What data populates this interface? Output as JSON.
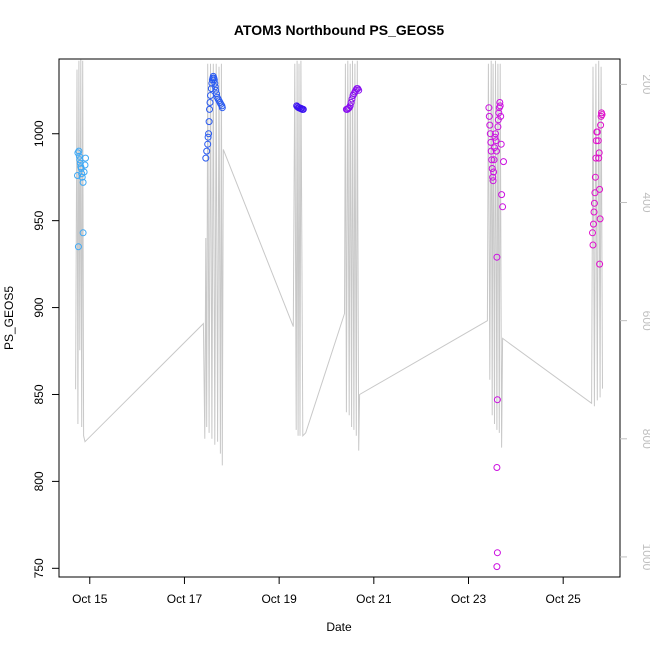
{
  "chart_data": {
    "type": "scatter",
    "title": "ATOM3 Northbound PS_GEOS5",
    "xlabel": "Date",
    "ylabel": "PS_GEOS5",
    "x_unit": "day of October",
    "xlim": [
      14.35,
      26.2
    ],
    "ylim": [
      745,
      1043
    ],
    "x_ticks": [
      15,
      17,
      19,
      21,
      23,
      25
    ],
    "x_tick_labels": [
      "Oct 15",
      "Oct 17",
      "Oct 19",
      "Oct 21",
      "Oct 23",
      "Oct 25"
    ],
    "y_ticks": [
      750,
      800,
      850,
      900,
      950,
      1000
    ],
    "y_tick_labels": [
      "750",
      "800",
      "850",
      "900",
      "950",
      "1000"
    ],
    "right_axis": {
      "label": "",
      "color": "#bfbfbf",
      "ylim": [
        1034,
        157
      ],
      "ticks": [
        200,
        400,
        600,
        800,
        1000
      ],
      "tick_labels": [
        "200",
        "400",
        "600",
        "800",
        "1000"
      ]
    },
    "grid": false,
    "legend": "none",
    "series": [
      {
        "color": "#3fa9f5",
        "points": [
          [
            14.75,
            989
          ],
          [
            14.77,
            990
          ],
          [
            14.78,
            987
          ],
          [
            14.79,
            985
          ],
          [
            14.8,
            983
          ],
          [
            14.81,
            981
          ],
          [
            14.82,
            980
          ],
          [
            14.83,
            977
          ],
          [
            14.84,
            975
          ],
          [
            14.86,
            972
          ],
          [
            14.88,
            978
          ],
          [
            14.9,
            982
          ],
          [
            14.91,
            986
          ],
          [
            14.74,
            976
          ],
          [
            14.76,
            935
          ],
          [
            14.86,
            943
          ]
        ]
      },
      {
        "color": "#2a5bf0",
        "points": [
          [
            17.45,
            986
          ],
          [
            17.47,
            990
          ],
          [
            17.49,
            994
          ],
          [
            17.5,
            998
          ],
          [
            17.51,
            1000
          ],
          [
            17.52,
            1007
          ],
          [
            17.53,
            1014
          ],
          [
            17.54,
            1018
          ],
          [
            17.55,
            1022
          ],
          [
            17.57,
            1026
          ],
          [
            17.58,
            1029
          ],
          [
            17.59,
            1031
          ],
          [
            17.6,
            1032
          ],
          [
            17.61,
            1033
          ],
          [
            17.62,
            1032
          ],
          [
            17.63,
            1031
          ],
          [
            17.64,
            1029
          ],
          [
            17.65,
            1027
          ],
          [
            17.66,
            1025
          ],
          [
            17.68,
            1023
          ],
          [
            17.69,
            1021
          ],
          [
            17.71,
            1020
          ],
          [
            17.73,
            1019
          ],
          [
            17.75,
            1018
          ],
          [
            17.77,
            1017
          ],
          [
            17.79,
            1016
          ],
          [
            17.8,
            1015
          ]
        ]
      },
      {
        "color": "#3a10f0",
        "points": [
          [
            19.37,
            1016
          ],
          [
            19.39,
            1015.5
          ],
          [
            19.41,
            1015
          ],
          [
            19.43,
            1015
          ],
          [
            19.45,
            1014.5
          ],
          [
            19.47,
            1014.5
          ],
          [
            19.49,
            1014
          ],
          [
            19.51,
            1014
          ]
        ]
      },
      {
        "color": "#8a10f0",
        "points": [
          [
            20.42,
            1014
          ],
          [
            20.44,
            1014
          ],
          [
            20.46,
            1014.5
          ],
          [
            20.48,
            1015
          ],
          [
            20.5,
            1016
          ],
          [
            20.52,
            1018
          ],
          [
            20.54,
            1020
          ],
          [
            20.56,
            1022
          ],
          [
            20.58,
            1023
          ],
          [
            20.6,
            1024
          ],
          [
            20.62,
            1025
          ],
          [
            20.64,
            1026
          ],
          [
            20.66,
            1026
          ],
          [
            20.68,
            1025
          ]
        ]
      },
      {
        "color": "#cc10e0",
        "points": [
          [
            23.43,
            1015
          ],
          [
            23.44,
            1010
          ],
          [
            23.45,
            1005
          ],
          [
            23.46,
            1000
          ],
          [
            23.47,
            995
          ],
          [
            23.48,
            990
          ],
          [
            23.49,
            985
          ],
          [
            23.5,
            980
          ],
          [
            23.51,
            975
          ],
          [
            23.52,
            973
          ],
          [
            23.53,
            978
          ],
          [
            23.54,
            985
          ],
          [
            23.55,
            992
          ],
          [
            23.56,
            998
          ],
          [
            23.57,
            1000
          ],
          [
            23.58,
            996
          ],
          [
            23.59,
            990
          ],
          [
            23.6,
            929
          ],
          [
            23.61,
            847
          ],
          [
            23.6,
            808
          ],
          [
            23.61,
            759
          ],
          [
            23.6,
            751
          ],
          [
            23.62,
            1004
          ],
          [
            23.63,
            1008
          ],
          [
            23.64,
            1012
          ],
          [
            23.65,
            1015
          ],
          [
            23.66,
            1018
          ],
          [
            23.67,
            1016
          ],
          [
            23.68,
            1010
          ],
          [
            23.69,
            994
          ],
          [
            23.7,
            965
          ],
          [
            23.72,
            958
          ],
          [
            23.74,
            984
          ]
        ]
      },
      {
        "color": "#e010cc",
        "points": [
          [
            25.62,
            943
          ],
          [
            25.63,
            936
          ],
          [
            25.64,
            948
          ],
          [
            25.65,
            955
          ],
          [
            25.66,
            960
          ],
          [
            25.67,
            966
          ],
          [
            25.68,
            975
          ],
          [
            25.69,
            986
          ],
          [
            25.7,
            996
          ],
          [
            25.71,
            1001
          ],
          [
            25.72,
            1001
          ],
          [
            25.74,
            996
          ],
          [
            25.75,
            986
          ],
          [
            25.76,
            989
          ],
          [
            25.77,
            968
          ],
          [
            25.78,
            951
          ],
          [
            25.77,
            925
          ],
          [
            25.79,
            1005
          ],
          [
            25.8,
            1010
          ],
          [
            25.81,
            1012
          ],
          [
            25.82,
            1011
          ]
        ]
      }
    ],
    "altitude_trace": {
      "color": "#c8c8c8",
      "axis": "right",
      "points": [
        [
          14.7,
          716
        ],
        [
          14.73,
          175
        ],
        [
          14.75,
          775
        ],
        [
          14.77,
          160
        ],
        [
          14.79,
          650
        ],
        [
          14.81,
          158
        ],
        [
          14.83,
          780
        ],
        [
          14.85,
          160
        ],
        [
          14.87,
          795
        ],
        [
          14.9,
          805
        ],
        [
          17.4,
          605
        ],
        [
          17.43,
          800
        ],
        [
          17.45,
          460
        ],
        [
          17.47,
          780
        ],
        [
          17.49,
          165
        ],
        [
          17.52,
          790
        ],
        [
          17.55,
          165
        ],
        [
          17.58,
          800
        ],
        [
          17.61,
          165
        ],
        [
          17.64,
          810
        ],
        [
          17.67,
          165
        ],
        [
          17.7,
          805
        ],
        [
          17.73,
          170
        ],
        [
          17.76,
          825
        ],
        [
          17.78,
          165
        ],
        [
          17.8,
          845
        ],
        [
          17.82,
          310
        ],
        [
          19.3,
          610
        ],
        [
          19.33,
          165
        ],
        [
          19.36,
          785
        ],
        [
          19.38,
          160
        ],
        [
          19.4,
          795
        ],
        [
          19.42,
          165
        ],
        [
          19.44,
          795
        ],
        [
          19.46,
          160
        ],
        [
          19.5,
          795
        ],
        [
          19.56,
          790
        ],
        [
          20.38,
          588
        ],
        [
          20.4,
          165
        ],
        [
          20.42,
          755
        ],
        [
          20.45,
          160
        ],
        [
          20.48,
          760
        ],
        [
          20.5,
          165
        ],
        [
          20.53,
          780
        ],
        [
          20.55,
          160
        ],
        [
          20.58,
          785
        ],
        [
          20.6,
          165
        ],
        [
          20.63,
          795
        ],
        [
          20.65,
          160
        ],
        [
          20.68,
          820
        ],
        [
          20.7,
          725
        ],
        [
          23.4,
          600
        ],
        [
          23.42,
          165
        ],
        [
          23.45,
          700
        ],
        [
          23.48,
          160
        ],
        [
          23.5,
          760
        ],
        [
          23.52,
          165
        ],
        [
          23.55,
          775
        ],
        [
          23.57,
          160
        ],
        [
          23.6,
          785
        ],
        [
          23.62,
          165
        ],
        [
          23.65,
          790
        ],
        [
          23.67,
          165
        ],
        [
          23.7,
          815
        ],
        [
          23.72,
          630
        ],
        [
          25.6,
          740
        ],
        [
          25.63,
          170
        ],
        [
          25.66,
          745
        ],
        [
          25.69,
          165
        ],
        [
          25.72,
          735
        ],
        [
          25.75,
          160
        ],
        [
          25.78,
          730
        ],
        [
          25.8,
          170
        ],
        [
          25.83,
          715
        ]
      ]
    }
  }
}
